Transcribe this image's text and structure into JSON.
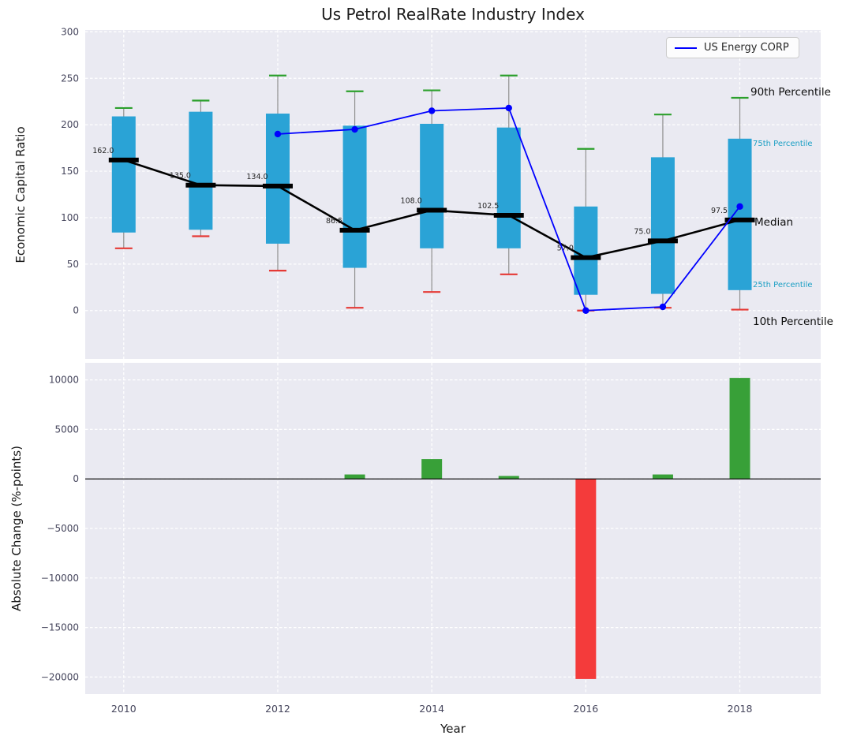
{
  "title": "Us Petrol RealRate Industry Index",
  "legend": {
    "label": "US Energy CORP"
  },
  "annotations": {
    "p90": "90th Percentile",
    "p75": "75th Percentile",
    "median": "Median",
    "p25": "25th Percentile",
    "p10": "10th Percentile"
  },
  "colors": {
    "panel_bg": "#eaeaf2",
    "grid": "#ffffff",
    "box_fill": "#2aa3d6",
    "cap_top": "#2ca02c",
    "cap_bottom": "#e53935",
    "whisker": "#8f8f8f",
    "median": "#000000",
    "company_line": "#0000ff",
    "bar_positive": "#38a038",
    "bar_negative": "#f43b3b",
    "cyan_label": "#1b9fc4",
    "text": "#262626",
    "tick": "#45455c"
  },
  "chart_data": [
    {
      "type": "boxplot+line",
      "title": "Us Petrol RealRate Industry Index",
      "ylabel": "Economic Capital Ratio",
      "ylim": [
        -52,
        302
      ],
      "xlim": [
        2009.5,
        2019.05
      ],
      "yticks": [
        0,
        50,
        100,
        150,
        200,
        250,
        300
      ],
      "ytick_labels": [
        "0",
        "50",
        "100",
        "150",
        "200",
        "250",
        "300"
      ],
      "years": [
        2010,
        2011,
        2012,
        2013,
        2014,
        2015,
        2016,
        2017,
        2018
      ],
      "box": {
        "p90": [
          218,
          226,
          253,
          236,
          237,
          253,
          174,
          211,
          229
        ],
        "q75": [
          209,
          214,
          212,
          199,
          201,
          197,
          112,
          165,
          185
        ],
        "median": [
          162,
          135,
          134,
          86.5,
          108,
          102.5,
          57,
          75,
          97.5
        ],
        "q25": [
          84,
          87,
          72,
          46,
          67,
          67,
          17,
          18,
          22
        ],
        "p10": [
          67,
          80,
          43,
          3,
          20,
          39,
          0,
          3,
          1
        ]
      },
      "median_labels": [
        "162.0",
        "135.0",
        "134.0",
        "86.5",
        "108.0",
        "102.5",
        "57.0",
        "75.0",
        "97.5"
      ],
      "company_series": {
        "name": "US Energy CORP",
        "years": [
          2012,
          2013,
          2014,
          2015,
          2016,
          2017,
          2018
        ],
        "values": [
          190,
          195,
          215,
          218,
          0,
          4,
          112
        ]
      },
      "legend_position": "upper right",
      "grid": true
    },
    {
      "type": "bar",
      "ylabel": "Absolute Change (%-points)",
      "xlabel": "Year",
      "ylim": [
        -21720,
        11720
      ],
      "xlim": [
        2009.5,
        2019.05
      ],
      "yticks": [
        10000,
        5000,
        0,
        -5000,
        -10000,
        -15000,
        -20000
      ],
      "ytick_labels": [
        "10000",
        "5000",
        "0",
        "−5000",
        "−10000",
        "−15000",
        "−20000"
      ],
      "xticks": [
        2010,
        2012,
        2014,
        2016,
        2018
      ],
      "xtick_labels": [
        "2010",
        "2012",
        "2014",
        "2016",
        "2018"
      ],
      "years": [
        2010,
        2011,
        2012,
        2013,
        2014,
        2015,
        2016,
        2017,
        2018
      ],
      "values": [
        0,
        0,
        0,
        450,
        2000,
        300,
        -20200,
        450,
        10200
      ],
      "grid": true
    }
  ]
}
